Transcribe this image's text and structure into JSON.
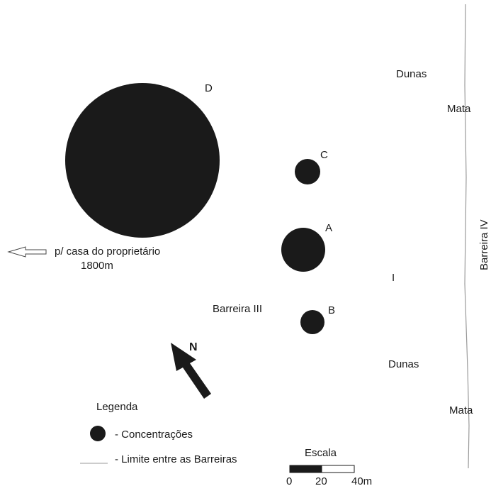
{
  "concentrations": [
    {
      "id": "D",
      "label": "D"
    },
    {
      "id": "C",
      "label": "C"
    },
    {
      "id": "A",
      "label": "A"
    },
    {
      "id": "B",
      "label": "B"
    }
  ],
  "places": {
    "dunas_top": "Dunas",
    "mata_top": "Mata",
    "dunas_bottom": "Dunas",
    "mata_bottom": "Mata",
    "barreira_iii": "Barreira III",
    "barreira_iv": "Barreira IV",
    "marker_i": "I"
  },
  "direction": {
    "text": "p/ casa do proprietário",
    "distance": "1800m"
  },
  "north": "N",
  "legend": {
    "title": "Legenda",
    "concentration_label": "- Concentrações",
    "boundary_label": "- Limite entre as Barreiras"
  },
  "scale": {
    "title": "Escala",
    "ticks": [
      "0",
      "20",
      "40m"
    ]
  },
  "colors": {
    "ink": "#1a1a1a",
    "boundary": "#9a9a9a"
  }
}
